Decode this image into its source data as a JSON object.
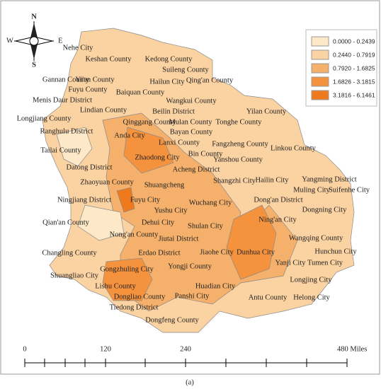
{
  "compass": {
    "north": "N",
    "south": "S",
    "east": "E",
    "west": "W"
  },
  "legend": [
    "0.0000 - 0.2439",
    "0.2440 - 0.7919",
    "0.7920 - 1.6825",
    "1.6826 - 3.1815",
    "3.1816 - 6.1461"
  ],
  "labels": [
    "Nehe City",
    "Keshan County",
    "Kedong County",
    "Suileng County",
    "Gannan County",
    "Yi'an County",
    "Qing'an County",
    "Fuyu County",
    "Baiquan County",
    "Hailun City",
    "Menis Daur District",
    "Wangkui County",
    "Lindian County",
    "Beilin District",
    "Yilan County",
    "Longjiang County",
    "Qinggang County",
    "Mulan County",
    "Tonghe County",
    "Ranghulu District",
    "Bayan County",
    "Anda City",
    "Lanxi County",
    "Fangzheng County",
    "Linkou County",
    "Tailai County",
    "Zhaodong City",
    "Bin County",
    "Yanshou County",
    "Datong District",
    "Acheng District",
    "Zhaoyuan County",
    "Shuangcheng",
    "Shangzhi City",
    "Hailin City",
    "Yangming District",
    "Muling City",
    "Suifenhe City",
    "Ningjiang District",
    "Fuyu City",
    "Wuchang City",
    "Dong'an District",
    "Yushu City",
    "Dongning City",
    "Qian'an County",
    "Dehui City",
    "Shulan City",
    "Ning'an City",
    "Nong'an County",
    "Jiutai District",
    "Wangqing County",
    "Changling County",
    "Erdao District",
    "Jiaohe City",
    "Dunhua City",
    "Hunchun City",
    "Yongji County",
    "Yanji City",
    "Tumen City",
    "Shuangliao City",
    "Gongzhuling City",
    "Longjing City",
    "Lishu County",
    "Huadian City",
    "Dongliao County",
    "Panshi City",
    "Antu County",
    "Helong City",
    "Tiedong District",
    "Dongfeng County"
  ],
  "scale_bar": [
    "0",
    "120",
    "240",
    "480 Miles"
  ],
  "caption": "(a)"
}
